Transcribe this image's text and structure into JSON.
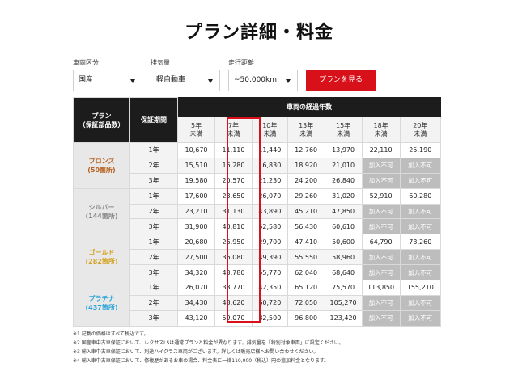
{
  "title": "プラン詳細・料金",
  "filters": {
    "origin": {
      "label": "車両区分",
      "value": "国産"
    },
    "displacement": {
      "label": "排気量",
      "value": "軽自動車"
    },
    "mileage": {
      "label": "走行距離",
      "value": "~50,000km"
    },
    "submit_label": "プランを見る"
  },
  "table": {
    "plan_header": [
      "プラン",
      "（保証部品数）"
    ],
    "term_header": "保証期間",
    "years_header": "車両の経過年数",
    "columns": [
      [
        "5年",
        "未満"
      ],
      [
        "7年",
        "未満"
      ],
      [
        "10年",
        "未満"
      ],
      [
        "13年",
        "未満"
      ],
      [
        "15年",
        "未満"
      ],
      [
        "18年",
        "未満"
      ],
      [
        "20年",
        "未満"
      ]
    ],
    "plans": [
      {
        "name": "ブロンズ",
        "count": "(50箇所)",
        "color": "#b8601f",
        "rows": [
          {
            "term": "1年",
            "values": [
              "10,670",
              "11,110",
              "11,440",
              "12,760",
              "13,970",
              "22,110",
              "25,190"
            ]
          },
          {
            "term": "2年",
            "values": [
              "15,510",
              "16,280",
              "16,830",
              "18,920",
              "21,010",
              "加入不可",
              "加入不可"
            ]
          },
          {
            "term": "3年",
            "values": [
              "19,580",
              "20,570",
              "21,230",
              "24,200",
              "26,840",
              "加入不可",
              "加入不可"
            ]
          }
        ]
      },
      {
        "name": "シルバー",
        "count": "(144箇所)",
        "color": "#8a8a8a",
        "rows": [
          {
            "term": "1年",
            "values": [
              "17,600",
              "23,650",
              "26,070",
              "29,260",
              "31,020",
              "52,910",
              "60,280"
            ]
          },
          {
            "term": "2年",
            "values": [
              "23,210",
              "31,130",
              "43,890",
              "45,210",
              "47,850",
              "加入不可",
              "加入不可"
            ]
          },
          {
            "term": "3年",
            "values": [
              "31,900",
              "40,810",
              "52,580",
              "56,430",
              "60,610",
              "加入不可",
              "加入不可"
            ]
          }
        ]
      },
      {
        "name": "ゴールド",
        "count": "(282箇所)",
        "color": "#d5a21f",
        "rows": [
          {
            "term": "1年",
            "values": [
              "20,680",
              "26,950",
              "29,700",
              "47,410",
              "50,600",
              "64,790",
              "73,260"
            ]
          },
          {
            "term": "2年",
            "values": [
              "27,500",
              "36,080",
              "49,390",
              "55,550",
              "58,960",
              "加入不可",
              "加入不可"
            ]
          },
          {
            "term": "3年",
            "values": [
              "34,320",
              "43,780",
              "55,770",
              "62,040",
              "68,640",
              "加入不可",
              "加入不可"
            ]
          }
        ]
      },
      {
        "name": "プラチナ",
        "count": "(437箇所)",
        "color": "#2aa4d8",
        "rows": [
          {
            "term": "1年",
            "values": [
              "26,070",
              "33,770",
              "42,350",
              "65,120",
              "75,570",
              "113,850",
              "155,210"
            ]
          },
          {
            "term": "2年",
            "values": [
              "34,430",
              "48,620",
              "60,720",
              "72,050",
              "105,270",
              "加入不可",
              "加入不可"
            ]
          },
          {
            "term": "3年",
            "values": [
              "43,120",
              "59,070",
              "82,500",
              "96,800",
              "123,420",
              "加入不可",
              "加入不可"
            ]
          }
        ]
      }
    ]
  },
  "notes": [
    "※1 記載の価格はすべて税込です。",
    "※2 国産車中古車保証において、レクサスLSは通常プランと料金が異なります。排気量を「特別対象車両」に設定ください。",
    "※3 輸入車中古車保証において、別途ハイクラス車両がございます。詳しくは販売店様へお問い合わせください。",
    "※4 輸入車中古車保証において、修復歴があるお車の場合、料金表に一律110,000（税込）円の追加料金となります。"
  ]
}
